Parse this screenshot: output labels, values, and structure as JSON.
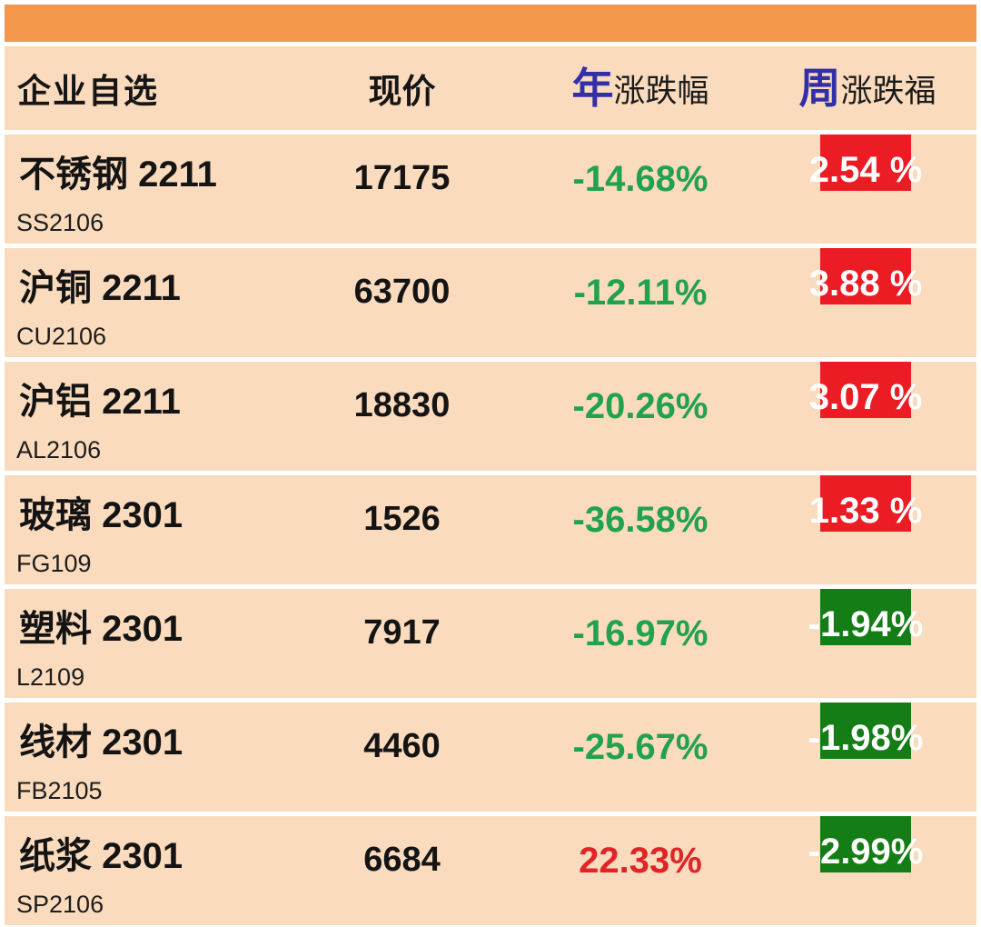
{
  "header": {
    "col_watchlist": "企业自选",
    "col_price": "现价",
    "col_year_prefix": "年",
    "col_year_rest": "涨跌幅",
    "col_week_prefix": "周",
    "col_week_rest": "涨跌福"
  },
  "colors": {
    "topbar": "#F2974B",
    "row_bg": "#FBDBBD",
    "header_blue": "#3230A8",
    "green_text": "#21A24F",
    "red_text": "#E02428",
    "badge_red": "#EC1C24",
    "badge_green": "#157D15"
  },
  "rows": [
    {
      "name": "不锈钢 2211",
      "code": "SS2106",
      "price": "17175",
      "year_change": "-14.68%",
      "year_dir": "down",
      "week_change": "2.54 %",
      "week_dir": "up"
    },
    {
      "name": "沪铜 2211",
      "code": "CU2106",
      "price": "63700",
      "year_change": "-12.11%",
      "year_dir": "down",
      "week_change": "3.88 %",
      "week_dir": "up"
    },
    {
      "name": "沪铝 2211",
      "code": "AL2106",
      "price": "18830",
      "year_change": "-20.26%",
      "year_dir": "down",
      "week_change": "3.07 %",
      "week_dir": "up"
    },
    {
      "name": "玻璃 2301",
      "code": "FG109",
      "price": "1526",
      "year_change": "-36.58%",
      "year_dir": "down",
      "week_change": "1.33 %",
      "week_dir": "up"
    },
    {
      "name": "塑料 2301",
      "code": "L2109",
      "price": "7917",
      "year_change": "-16.97%",
      "year_dir": "down",
      "week_change": "-1.94%",
      "week_dir": "down"
    },
    {
      "name": "线材 2301",
      "code": "FB2105",
      "price": "4460",
      "year_change": "-25.67%",
      "year_dir": "down",
      "week_change": "-1.98%",
      "week_dir": "down"
    },
    {
      "name": "纸浆 2301",
      "code": "SP2106",
      "price": "6684",
      "year_change": "22.33%",
      "year_dir": "up",
      "week_change": "-2.99%",
      "week_dir": "down"
    }
  ]
}
